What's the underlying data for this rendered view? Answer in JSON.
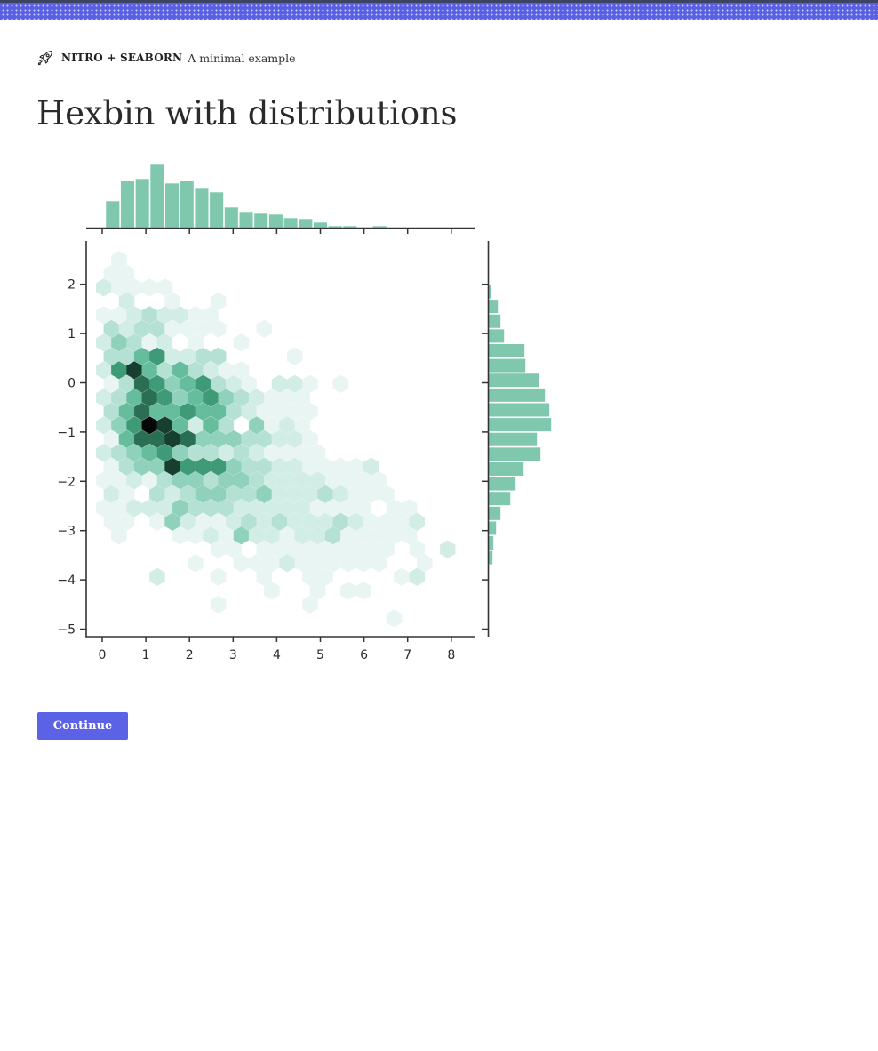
{
  "header": {
    "icon": "rocket-icon",
    "brand": "NITRO + SEABORN",
    "subtitle": "A minimal example"
  },
  "page": {
    "title": "Hexbin with distributions"
  },
  "actions": {
    "continue_label": "Continue"
  },
  "colors": {
    "band": "#5a60e2",
    "button": "#5c62e6",
    "hist": "#7fc8ae",
    "axis": "#333333"
  },
  "chart_data": {
    "type": "hexbin",
    "title": "",
    "xlabel": "",
    "ylabel": "",
    "xlim": [
      -0.4,
      8.6
    ],
    "ylim": [
      -5.2,
      2.8
    ],
    "x_ticks": [
      0,
      1,
      2,
      3,
      4,
      5,
      6,
      7,
      8
    ],
    "y_ticks": [
      2,
      1,
      0,
      -1,
      -2,
      -3,
      -4,
      -5
    ],
    "x_tick_labels": [
      "0",
      "1",
      "2",
      "3",
      "4",
      "5",
      "6",
      "7",
      "8"
    ],
    "y_tick_labels": [
      "2",
      "1",
      "0",
      "−1",
      "−2",
      "−3",
      "−4",
      "−5"
    ],
    "grid": false,
    "colormap": "BuGn",
    "hex_levels_note": "cells are [col,row,level]; level 1 (lightest) to 9 (black)",
    "hex_cells": [
      [
        -2,
        -12,
        1
      ],
      [
        -3,
        -11,
        1
      ],
      [
        -2,
        -11,
        1
      ],
      [
        -3,
        -10,
        2
      ],
      [
        -2,
        -10,
        1
      ],
      [
        -1,
        -10,
        1
      ],
      [
        0,
        -10,
        1
      ],
      [
        1,
        -10,
        1
      ],
      [
        -2,
        -9,
        2
      ],
      [
        1,
        -9,
        1
      ],
      [
        4,
        -9,
        1
      ],
      [
        -3,
        -8,
        1
      ],
      [
        -2,
        -8,
        1
      ],
      [
        -1,
        -8,
        2
      ],
      [
        0,
        -8,
        3
      ],
      [
        1,
        -8,
        2
      ],
      [
        2,
        -8,
        2
      ],
      [
        3,
        -8,
        1
      ],
      [
        4,
        -8,
        1
      ],
      [
        -3,
        -7,
        3
      ],
      [
        -2,
        -7,
        2
      ],
      [
        -1,
        -7,
        3
      ],
      [
        0,
        -7,
        3
      ],
      [
        1,
        -7,
        1
      ],
      [
        2,
        -7,
        1
      ],
      [
        3,
        -7,
        1
      ],
      [
        4,
        -7,
        1
      ],
      [
        7,
        -7,
        1
      ],
      [
        -3,
        -6,
        2
      ],
      [
        -2,
        -6,
        4
      ],
      [
        -1,
        -6,
        3
      ],
      [
        0,
        -6,
        1
      ],
      [
        1,
        -6,
        2
      ],
      [
        2,
        -6,
        0
      ],
      [
        3,
        -6,
        1
      ],
      [
        6,
        -6,
        1
      ],
      [
        -3,
        -5,
        3
      ],
      [
        -2,
        -5,
        3
      ],
      [
        -1,
        -5,
        5
      ],
      [
        0,
        -5,
        6
      ],
      [
        1,
        -5,
        2
      ],
      [
        2,
        -5,
        2
      ],
      [
        3,
        -5,
        3
      ],
      [
        4,
        -5,
        3
      ],
      [
        9,
        -5,
        1
      ],
      [
        -3,
        -4,
        2
      ],
      [
        -2,
        -4,
        6
      ],
      [
        -1,
        -4,
        8
      ],
      [
        0,
        -4,
        5
      ],
      [
        1,
        -4,
        3
      ],
      [
        2,
        -4,
        5
      ],
      [
        3,
        -4,
        3
      ],
      [
        4,
        -4,
        2
      ],
      [
        5,
        -4,
        1
      ],
      [
        6,
        -4,
        1
      ],
      [
        -3,
        -3,
        1
      ],
      [
        -2,
        -3,
        3
      ],
      [
        -1,
        -3,
        7
      ],
      [
        0,
        -3,
        6
      ],
      [
        1,
        -3,
        4
      ],
      [
        2,
        -3,
        5
      ],
      [
        3,
        -3,
        6
      ],
      [
        4,
        -3,
        3
      ],
      [
        5,
        -3,
        2
      ],
      [
        6,
        -3,
        1
      ],
      [
        8,
        -3,
        2
      ],
      [
        9,
        -3,
        2
      ],
      [
        10,
        -3,
        1
      ],
      [
        12,
        -3,
        1
      ],
      [
        -3,
        -2,
        2
      ],
      [
        -2,
        -2,
        3
      ],
      [
        -1,
        -2,
        5
      ],
      [
        0,
        -2,
        7
      ],
      [
        1,
        -2,
        6
      ],
      [
        2,
        -2,
        4
      ],
      [
        3,
        -2,
        5
      ],
      [
        4,
        -2,
        6
      ],
      [
        5,
        -2,
        4
      ],
      [
        6,
        -2,
        3
      ],
      [
        7,
        -2,
        2
      ],
      [
        8,
        -2,
        1
      ],
      [
        9,
        -2,
        1
      ],
      [
        10,
        -2,
        1
      ],
      [
        -3,
        -1,
        3
      ],
      [
        -2,
        -1,
        5
      ],
      [
        -1,
        -1,
        7
      ],
      [
        0,
        -1,
        5
      ],
      [
        1,
        -1,
        5
      ],
      [
        2,
        -1,
        6
      ],
      [
        3,
        -1,
        5
      ],
      [
        4,
        -1,
        5
      ],
      [
        5,
        -1,
        3
      ],
      [
        6,
        -1,
        2
      ],
      [
        7,
        -1,
        1
      ],
      [
        8,
        -1,
        1
      ],
      [
        9,
        -1,
        1
      ],
      [
        10,
        -1,
        1
      ],
      [
        -3,
        0,
        2
      ],
      [
        -2,
        0,
        4
      ],
      [
        -1,
        0,
        6
      ],
      [
        0,
        0,
        9
      ],
      [
        1,
        0,
        8
      ],
      [
        2,
        0,
        5
      ],
      [
        3,
        0,
        2
      ],
      [
        4,
        0,
        5
      ],
      [
        5,
        0,
        3
      ],
      [
        6,
        0,
        0
      ],
      [
        7,
        0,
        4
      ],
      [
        8,
        0,
        1
      ],
      [
        9,
        0,
        2
      ],
      [
        10,
        0,
        1
      ],
      [
        -3,
        1,
        1
      ],
      [
        -2,
        1,
        5
      ],
      [
        -1,
        1,
        7
      ],
      [
        0,
        1,
        7
      ],
      [
        1,
        1,
        8
      ],
      [
        2,
        1,
        7
      ],
      [
        3,
        1,
        4
      ],
      [
        4,
        1,
        4
      ],
      [
        5,
        1,
        4
      ],
      [
        6,
        1,
        3
      ],
      [
        7,
        1,
        3
      ],
      [
        8,
        1,
        2
      ],
      [
        9,
        1,
        2
      ],
      [
        10,
        1,
        1
      ],
      [
        -3,
        2,
        2
      ],
      [
        -2,
        2,
        3
      ],
      [
        -1,
        2,
        4
      ],
      [
        0,
        2,
        5
      ],
      [
        1,
        2,
        6
      ],
      [
        2,
        2,
        4
      ],
      [
        3,
        2,
        3
      ],
      [
        4,
        2,
        3
      ],
      [
        5,
        2,
        2
      ],
      [
        6,
        2,
        3
      ],
      [
        7,
        2,
        2
      ],
      [
        8,
        2,
        1
      ],
      [
        9,
        2,
        1
      ],
      [
        10,
        2,
        1
      ],
      [
        11,
        2,
        1
      ],
      [
        -3,
        3,
        1
      ],
      [
        -2,
        3,
        3
      ],
      [
        -1,
        3,
        4
      ],
      [
        0,
        3,
        4
      ],
      [
        1,
        3,
        8
      ],
      [
        2,
        3,
        6
      ],
      [
        3,
        3,
        6
      ],
      [
        4,
        3,
        6
      ],
      [
        5,
        3,
        4
      ],
      [
        6,
        3,
        3
      ],
      [
        7,
        3,
        3
      ],
      [
        8,
        3,
        2
      ],
      [
        9,
        3,
        2
      ],
      [
        10,
        3,
        1
      ],
      [
        11,
        3,
        1
      ],
      [
        12,
        3,
        1
      ],
      [
        13,
        3,
        1
      ],
      [
        14,
        3,
        2
      ],
      [
        -3,
        4,
        1
      ],
      [
        -2,
        4,
        1
      ],
      [
        -1,
        4,
        2
      ],
      [
        0,
        4,
        1
      ],
      [
        1,
        4,
        3
      ],
      [
        2,
        4,
        4
      ],
      [
        3,
        4,
        4
      ],
      [
        4,
        4,
        3
      ],
      [
        5,
        4,
        4
      ],
      [
        6,
        4,
        4
      ],
      [
        7,
        4,
        3
      ],
      [
        8,
        4,
        2
      ],
      [
        9,
        4,
        2
      ],
      [
        10,
        4,
        2
      ],
      [
        11,
        4,
        2
      ],
      [
        12,
        4,
        1
      ],
      [
        13,
        4,
        1
      ],
      [
        14,
        4,
        1
      ],
      [
        15,
        4,
        1
      ],
      [
        -3,
        5,
        2
      ],
      [
        -2,
        5,
        1
      ],
      [
        -1,
        5,
        0
      ],
      [
        0,
        5,
        3
      ],
      [
        1,
        5,
        2
      ],
      [
        2,
        5,
        3
      ],
      [
        3,
        5,
        4
      ],
      [
        4,
        5,
        4
      ],
      [
        5,
        5,
        3
      ],
      [
        6,
        5,
        3
      ],
      [
        7,
        5,
        4
      ],
      [
        8,
        5,
        2
      ],
      [
        9,
        5,
        2
      ],
      [
        10,
        5,
        2
      ],
      [
        11,
        5,
        3
      ],
      [
        12,
        5,
        2
      ],
      [
        13,
        5,
        1
      ],
      [
        14,
        5,
        1
      ],
      [
        15,
        5,
        1
      ],
      [
        -3,
        6,
        1
      ],
      [
        -2,
        6,
        1
      ],
      [
        -1,
        6,
        2
      ],
      [
        0,
        6,
        2
      ],
      [
        1,
        6,
        2
      ],
      [
        2,
        6,
        4
      ],
      [
        3,
        6,
        3
      ],
      [
        4,
        6,
        3
      ],
      [
        5,
        6,
        3
      ],
      [
        6,
        6,
        2
      ],
      [
        7,
        6,
        2
      ],
      [
        8,
        6,
        2
      ],
      [
        9,
        6,
        2
      ],
      [
        10,
        6,
        2
      ],
      [
        11,
        6,
        1
      ],
      [
        12,
        6,
        1
      ],
      [
        13,
        6,
        1
      ],
      [
        14,
        6,
        1
      ],
      [
        16,
        6,
        1
      ],
      [
        17,
        6,
        1
      ],
      [
        -3,
        7,
        1
      ],
      [
        -2,
        7,
        1
      ],
      [
        0,
        7,
        1
      ],
      [
        1,
        7,
        4
      ],
      [
        2,
        7,
        2
      ],
      [
        3,
        7,
        1
      ],
      [
        4,
        7,
        1
      ],
      [
        5,
        7,
        2
      ],
      [
        6,
        7,
        3
      ],
      [
        7,
        7,
        2
      ],
      [
        8,
        7,
        3
      ],
      [
        9,
        7,
        2
      ],
      [
        10,
        7,
        2
      ],
      [
        11,
        7,
        2
      ],
      [
        12,
        7,
        3
      ],
      [
        13,
        7,
        2
      ],
      [
        14,
        7,
        1
      ],
      [
        15,
        7,
        1
      ],
      [
        16,
        7,
        1
      ],
      [
        17,
        7,
        2
      ],
      [
        -2,
        8,
        1
      ],
      [
        2,
        8,
        1
      ],
      [
        3,
        8,
        1
      ],
      [
        4,
        8,
        2
      ],
      [
        5,
        8,
        1
      ],
      [
        6,
        8,
        4
      ],
      [
        7,
        8,
        2
      ],
      [
        8,
        8,
        2
      ],
      [
        9,
        8,
        1
      ],
      [
        10,
        8,
        2
      ],
      [
        11,
        8,
        2
      ],
      [
        12,
        8,
        3
      ],
      [
        13,
        8,
        1
      ],
      [
        14,
        8,
        1
      ],
      [
        15,
        8,
        1
      ],
      [
        16,
        8,
        1
      ],
      [
        17,
        8,
        1
      ],
      [
        4,
        9,
        1
      ],
      [
        5,
        9,
        1
      ],
      [
        7,
        9,
        1
      ],
      [
        8,
        9,
        1
      ],
      [
        9,
        9,
        1
      ],
      [
        10,
        9,
        1
      ],
      [
        11,
        9,
        1
      ],
      [
        12,
        9,
        1
      ],
      [
        13,
        9,
        1
      ],
      [
        14,
        9,
        1
      ],
      [
        15,
        9,
        1
      ],
      [
        17,
        9,
        1
      ],
      [
        19,
        9,
        2
      ],
      [
        3,
        10,
        1
      ],
      [
        6,
        10,
        1
      ],
      [
        7,
        10,
        1
      ],
      [
        8,
        10,
        1
      ],
      [
        9,
        10,
        2
      ],
      [
        10,
        10,
        1
      ],
      [
        11,
        10,
        1
      ],
      [
        12,
        10,
        1
      ],
      [
        13,
        10,
        1
      ],
      [
        14,
        10,
        1
      ],
      [
        15,
        10,
        1
      ],
      [
        18,
        10,
        1
      ],
      [
        0,
        11,
        2
      ],
      [
        4,
        11,
        1
      ],
      [
        7,
        11,
        1
      ],
      [
        10,
        11,
        1
      ],
      [
        11,
        11,
        1
      ],
      [
        16,
        11,
        1
      ],
      [
        17,
        11,
        2
      ],
      [
        8,
        12,
        1
      ],
      [
        11,
        12,
        1
      ],
      [
        13,
        12,
        1
      ],
      [
        14,
        12,
        1
      ],
      [
        4,
        13,
        1
      ],
      [
        10,
        13,
        1
      ],
      [
        16,
        14,
        1
      ]
    ],
    "top_histogram": {
      "orientation": "vertical",
      "bin_edges_x": [
        0.07,
        0.41,
        0.75,
        1.09,
        1.43,
        1.77,
        2.11,
        2.45,
        2.79,
        3.13,
        3.47,
        3.81,
        4.15,
        4.49,
        4.83,
        5.17,
        5.51,
        5.85,
        6.19,
        6.53,
        6.87
      ],
      "counts": [
        30,
        53,
        55,
        71,
        50,
        53,
        45,
        40,
        23,
        18,
        16,
        15,
        11,
        10,
        6,
        2,
        2,
        0,
        2,
        0
      ]
    },
    "right_histogram": {
      "orientation": "horizontal",
      "bin_edges_y": [
        2.0,
        1.7,
        1.4,
        1.1,
        0.8,
        0.5,
        0.2,
        -0.1,
        -0.4,
        -0.7,
        -1.0,
        -1.3,
        -1.6,
        -1.9,
        -2.2,
        -2.5,
        -2.8,
        -3.1,
        -3.4,
        -3.7,
        -4.0
      ],
      "counts": [
        3,
        11,
        14,
        18,
        41,
        42,
        57,
        64,
        69,
        71,
        55,
        59,
        40,
        31,
        25,
        14,
        9,
        6,
        5,
        1
      ]
    }
  }
}
